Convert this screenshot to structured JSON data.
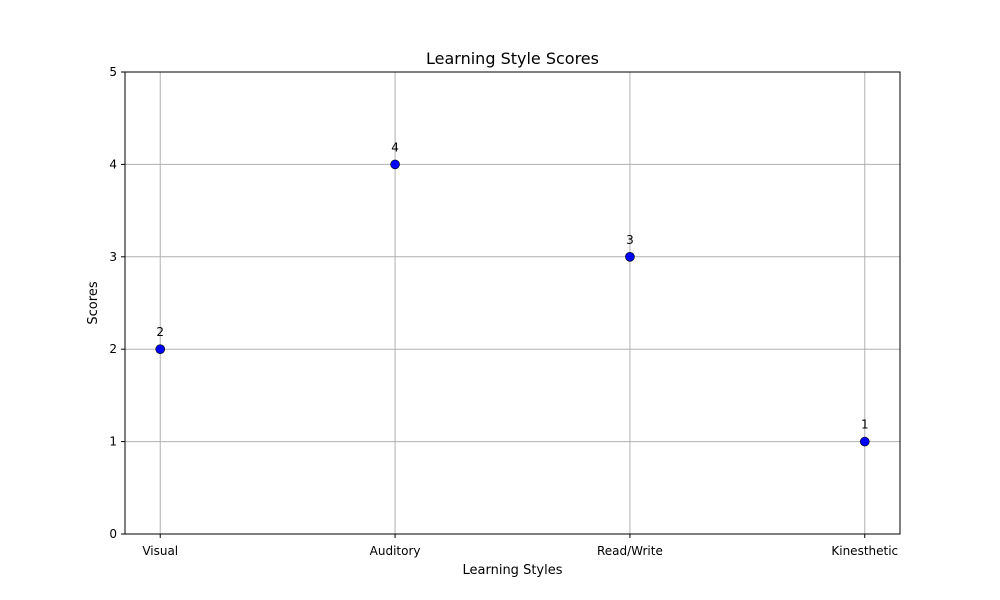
{
  "chart_data": {
    "type": "scatter",
    "title": "Learning Style Scores",
    "xlabel": "Learning Styles",
    "ylabel": "Scores",
    "categories": [
      "Visual",
      "Auditory",
      "Read/Write",
      "Kinesthetic"
    ],
    "values": [
      2,
      4,
      3,
      1
    ],
    "data_labels": [
      "2",
      "4",
      "3",
      "1"
    ],
    "ylim": [
      0,
      5
    ],
    "yticks": [
      0,
      1,
      2,
      3,
      4,
      5
    ],
    "ytick_labels": [
      "0",
      "1",
      "2",
      "3",
      "4",
      "5"
    ],
    "grid": true,
    "legend": "none",
    "colors": {
      "point_fill": "#0000ff",
      "point_edge": "#000000",
      "grid": "#b0b0b0",
      "axis": "#000000"
    }
  }
}
